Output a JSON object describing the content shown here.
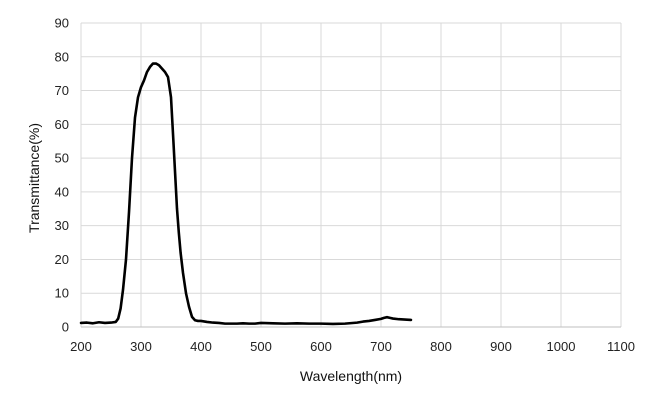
{
  "chart_data": {
    "type": "line",
    "title": "",
    "xlabel": "Wavelength(nm)",
    "ylabel": "Transmittance(%)",
    "xlim": [
      200,
      1100
    ],
    "ylim": [
      0,
      90
    ],
    "xticks": [
      200,
      300,
      400,
      500,
      600,
      700,
      800,
      900,
      1000,
      1100
    ],
    "yticks": [
      0,
      10,
      20,
      30,
      40,
      50,
      60,
      70,
      80,
      90
    ],
    "grid": true,
    "legend": "none",
    "line_color": "#000000",
    "grid_color": "#d9d9d9",
    "series": [
      {
        "x": [
          200,
          210,
          220,
          230,
          240,
          250,
          258,
          262,
          266,
          270,
          275,
          280,
          285,
          290,
          295,
          300,
          305,
          310,
          315,
          320,
          325,
          330,
          335,
          340,
          345,
          350,
          354,
          357,
          360,
          363,
          366,
          370,
          375,
          380,
          385,
          390,
          395,
          400,
          410,
          420,
          430,
          440,
          450,
          460,
          470,
          480,
          490,
          500,
          520,
          540,
          560,
          580,
          600,
          620,
          640,
          660,
          670,
          680,
          690,
          700,
          705,
          710,
          715,
          720,
          730,
          740,
          750
        ],
        "y": [
          1.2,
          1.3,
          1.1,
          1.4,
          1.2,
          1.3,
          1.5,
          2.5,
          5.5,
          11,
          20,
          34,
          50,
          62,
          68,
          71,
          73,
          75.5,
          77,
          78,
          78,
          77.5,
          76.5,
          75.5,
          74,
          68,
          55,
          45,
          35,
          28,
          22,
          16,
          10,
          6,
          3,
          2,
          1.8,
          1.8,
          1.5,
          1.3,
          1.2,
          1.0,
          1.0,
          1.0,
          1.1,
          1.0,
          1.0,
          1.2,
          1.1,
          1.0,
          1.1,
          1.0,
          1.0,
          0.9,
          1.0,
          1.3,
          1.6,
          1.8,
          2.1,
          2.4,
          2.7,
          2.9,
          2.7,
          2.5,
          2.3,
          2.2,
          2.1
        ]
      }
    ]
  }
}
